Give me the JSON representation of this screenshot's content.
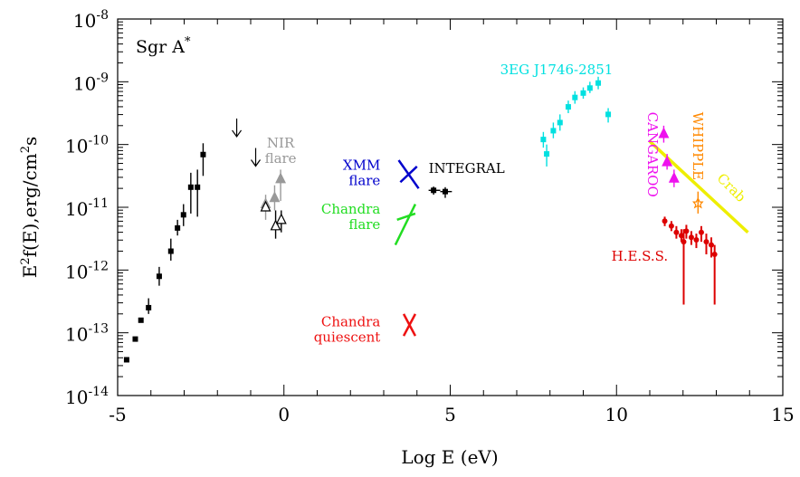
{
  "chart_data": {
    "type": "scatter",
    "title": "Sgr A*",
    "title_main": "Sgr A",
    "title_sup": "*",
    "xlabel": "Log E (eV)",
    "ylabel_parts": [
      "E",
      "2",
      "f(E),erg/cm",
      "2",
      "s"
    ],
    "xlim": [
      -5,
      15
    ],
    "ylim_log10": [
      -14,
      -8
    ],
    "x_scale": "linear",
    "y_scale": "log",
    "x_ticks": [
      -5,
      0,
      5,
      10,
      15
    ],
    "x_tick_labels": [
      "-5",
      "0",
      "5",
      "10",
      "15"
    ],
    "y_ticks": [
      -14,
      -13,
      -12,
      -11,
      -10,
      -9,
      -8
    ],
    "y_tick_labels": [
      {
        "base": "10",
        "exp": "-14"
      },
      {
        "base": "10",
        "exp": "-13"
      },
      {
        "base": "10",
        "exp": "-12"
      },
      {
        "base": "10",
        "exp": "-11"
      },
      {
        "base": "10",
        "exp": "-10"
      },
      {
        "base": "10",
        "exp": "-9"
      },
      {
        "base": "10",
        "exp": "-8"
      }
    ],
    "colors": {
      "radio": "#000000",
      "nir": "#999999",
      "xmm": "#0000cc",
      "chandra_flare": "#22dd22",
      "chandra_quiescent": "#ee1111",
      "integral": "#000000",
      "egret": "#00e0e0",
      "cangaroo": "#ee11ee",
      "whipple": "#ff8800",
      "crab": "#eeee00",
      "hess": "#dd0000"
    },
    "series": [
      {
        "name": "radio",
        "color_key": "radio",
        "marker": "square",
        "points": [
          {
            "x": -4.73,
            "y": -13.43
          },
          {
            "x": -4.47,
            "y": -13.1
          },
          {
            "x": -4.3,
            "y": -12.8
          },
          {
            "x": -4.07,
            "y": -12.6,
            "elo": -12.7,
            "ehi": -12.45
          },
          {
            "x": -3.75,
            "y": -12.1,
            "elo": -12.25,
            "ehi": -11.95
          },
          {
            "x": -3.4,
            "y": -11.7,
            "elo": -11.85,
            "ehi": -11.5
          },
          {
            "x": -3.2,
            "y": -11.33,
            "elo": -11.45,
            "ehi": -11.2
          },
          {
            "x": -3.02,
            "y": -11.12,
            "elo": -11.3,
            "ehi": -10.95
          },
          {
            "x": -2.8,
            "y": -10.68,
            "elo": -11.1,
            "ehi": -10.45
          },
          {
            "x": -2.6,
            "y": -10.68,
            "elo": -11.15,
            "ehi": -10.4
          },
          {
            "x": -2.43,
            "y": -10.16,
            "elo": -10.5,
            "ehi": -9.98
          }
        ]
      },
      {
        "name": "NIR upper limits",
        "color_key": "radio",
        "marker": "arrow-down",
        "points": [
          {
            "x": -1.42,
            "y": -9.73
          },
          {
            "x": -0.85,
            "y": -10.2
          }
        ]
      },
      {
        "name": "NIR flare",
        "color_key": "nir",
        "marker": "triangle",
        "points": [
          {
            "x": -0.55,
            "y": -10.95,
            "elo": -11.2,
            "ehi": -10.8
          },
          {
            "x": -0.28,
            "y": -10.85,
            "elo": -11.05,
            "ehi": -10.65
          },
          {
            "x": -0.1,
            "y": -10.55,
            "elo": -10.9,
            "ehi": -10.4
          }
        ]
      },
      {
        "name": "NIR quiescent",
        "color_key": "radio",
        "marker": "triangle",
        "points": [
          {
            "x": -0.55,
            "y": -11.0
          },
          {
            "x": -0.25,
            "y": -11.3,
            "elo": -11.5,
            "ehi": -11.05
          },
          {
            "x": -0.08,
            "y": -11.2,
            "elo": -11.4,
            "ehi": -11.05
          }
        ]
      },
      {
        "name": "INTEGRAL",
        "color_key": "integral",
        "marker": "square-xerr",
        "points": [
          {
            "x": 4.5,
            "y": -10.73,
            "xlo": 4.35,
            "xhi": 4.7,
            "elo": -10.8,
            "ehi": -10.67
          },
          {
            "x": 4.85,
            "y": -10.75,
            "xlo": 4.7,
            "xhi": 5.05,
            "elo": -10.85,
            "ehi": -10.68
          }
        ]
      },
      {
        "name": "3EG J1746-2851",
        "color_key": "egret",
        "marker": "square",
        "points": [
          {
            "x": 7.8,
            "y": -9.92,
            "elo": -10.05,
            "ehi": -9.8
          },
          {
            "x": 7.9,
            "y": -10.15,
            "elo": -10.35,
            "ehi": -10.0
          },
          {
            "x": 8.1,
            "y": -9.78,
            "elo": -9.9,
            "ehi": -9.65
          },
          {
            "x": 8.3,
            "y": -9.65,
            "elo": -9.78,
            "ehi": -9.52
          },
          {
            "x": 8.55,
            "y": -9.4,
            "elo": -9.5,
            "ehi": -9.3
          },
          {
            "x": 8.75,
            "y": -9.25,
            "elo": -9.35,
            "ehi": -9.15
          },
          {
            "x": 9.0,
            "y": -9.18,
            "elo": -9.27,
            "ehi": -9.09
          },
          {
            "x": 9.2,
            "y": -9.1,
            "elo": -9.18,
            "ehi": -9.0
          },
          {
            "x": 9.45,
            "y": -9.02,
            "elo": -9.12,
            "ehi": -8.92
          },
          {
            "x": 9.75,
            "y": -9.52,
            "elo": -9.65,
            "ehi": -9.42
          }
        ]
      },
      {
        "name": "CANGAROO",
        "color_key": "cangaroo",
        "marker": "triangle",
        "points": [
          {
            "x": 11.42,
            "y": -9.83,
            "elo": -9.97,
            "ehi": -9.7
          },
          {
            "x": 11.52,
            "y": -10.28,
            "elo": -10.4,
            "ehi": -10.15
          },
          {
            "x": 11.73,
            "y": -10.54,
            "elo": -10.68,
            "ehi": -10.4
          }
        ]
      },
      {
        "name": "WHIPPLE",
        "color_key": "whipple",
        "marker": "star",
        "points": [
          {
            "x": 12.45,
            "y": -10.93,
            "elo": -11.1,
            "ehi": -10.75
          }
        ]
      },
      {
        "name": "H.E.S.S.",
        "color_key": "hess",
        "marker": "circle",
        "points": [
          {
            "x": 11.45,
            "y": -11.22,
            "elo": -11.3,
            "ehi": -11.15
          },
          {
            "x": 11.65,
            "y": -11.3,
            "elo": -11.38,
            "ehi": -11.22
          },
          {
            "x": 11.8,
            "y": -11.4,
            "elo": -11.5,
            "ehi": -11.3
          },
          {
            "x": 11.95,
            "y": -11.45,
            "elo": -11.55,
            "ehi": -11.35
          },
          {
            "x": 12.1,
            "y": -11.38,
            "elo": -11.5,
            "ehi": -11.28
          },
          {
            "x": 12.25,
            "y": -11.48,
            "elo": -11.6,
            "ehi": -11.38
          },
          {
            "x": 12.4,
            "y": -11.52,
            "elo": -11.65,
            "ehi": -11.42
          },
          {
            "x": 12.55,
            "y": -11.4,
            "elo": -11.55,
            "ehi": -11.3
          },
          {
            "x": 12.7,
            "y": -11.55,
            "elo": -11.75,
            "ehi": -11.42
          },
          {
            "x": 12.85,
            "y": -11.6,
            "elo": -11.8,
            "ehi": -11.48
          },
          {
            "x": 12.95,
            "y": -11.75,
            "elo": -12.55,
            "ehi": -11.6
          },
          {
            "x": 12.02,
            "y": -11.55,
            "elo": -12.55,
            "ehi": -11.35
          }
        ]
      }
    ],
    "bowties": [
      {
        "name": "XMM flare",
        "color_key": "xmm",
        "lines": [
          [
            3.45,
            -10.25,
            4.05,
            -10.7
          ],
          [
            3.5,
            -10.6,
            4.0,
            -10.35
          ]
        ]
      },
      {
        "name": "Chandra flare",
        "color_key": "chandra_flare",
        "lines": [
          [
            3.35,
            -11.6,
            3.95,
            -10.95
          ],
          [
            3.4,
            -11.2,
            3.95,
            -11.1
          ]
        ]
      },
      {
        "name": "Chandra quiescent",
        "color_key": "chandra_quiescent",
        "lines": [
          [
            3.6,
            -12.7,
            3.95,
            -13.05
          ],
          [
            3.6,
            -13.05,
            3.95,
            -12.7
          ]
        ]
      },
      {
        "name": "Crab",
        "color_key": "crab",
        "lines": [
          [
            11.0,
            -9.95,
            13.95,
            -11.4
          ]
        ]
      }
    ],
    "annotations": [
      {
        "key": "nir",
        "lines": [
          "NIR",
          "flare"
        ],
        "x": -0.1,
        "y": -10.05,
        "color_key": "nir",
        "anchor": "middle",
        "size": 15
      },
      {
        "key": "xmm",
        "lines": [
          "XMM",
          "flare"
        ],
        "x": 2.9,
        "y": -10.4,
        "color_key": "xmm",
        "anchor": "end",
        "size": 15
      },
      {
        "key": "chandra_flare",
        "lines": [
          "Chandra",
          "flare"
        ],
        "x": 2.9,
        "y": -11.1,
        "color_key": "chandra_flare",
        "anchor": "end",
        "size": 15
      },
      {
        "key": "chandra_quiescent",
        "lines": [
          "Chandra",
          "quiescent"
        ],
        "x": 2.9,
        "y": -12.9,
        "color_key": "chandra_quiescent",
        "anchor": "end",
        "size": 15
      },
      {
        "key": "integral",
        "lines": [
          "INTEGRAL"
        ],
        "x": 4.35,
        "y": -10.45,
        "color_key": "integral",
        "anchor": "start",
        "size": 15
      },
      {
        "key": "egret",
        "lines": [
          "3EG J1746-2851"
        ],
        "x": 6.5,
        "y": -8.88,
        "color_key": "egret",
        "anchor": "start",
        "size": 15
      },
      {
        "key": "hess",
        "lines": [
          "H.E.S.S."
        ],
        "x": 11.55,
        "y": -11.85,
        "color_key": "hess",
        "anchor": "end",
        "size": 15
      }
    ],
    "rotated_annotations": [
      {
        "key": "cangaroo",
        "text": "CANGAROO",
        "x": 10.95,
        "y": -9.48,
        "color_key": "cangaroo",
        "angle": 90,
        "size": 15
      },
      {
        "key": "whipple",
        "text": "WHIPPLE",
        "x": 12.3,
        "y": -9.48,
        "color_key": "whipple",
        "angle": 90,
        "size": 15
      },
      {
        "key": "crab",
        "text": "Crab",
        "x": 13.0,
        "y": -10.55,
        "color_key": "crab",
        "angle": 45,
        "size": 15
      }
    ]
  }
}
